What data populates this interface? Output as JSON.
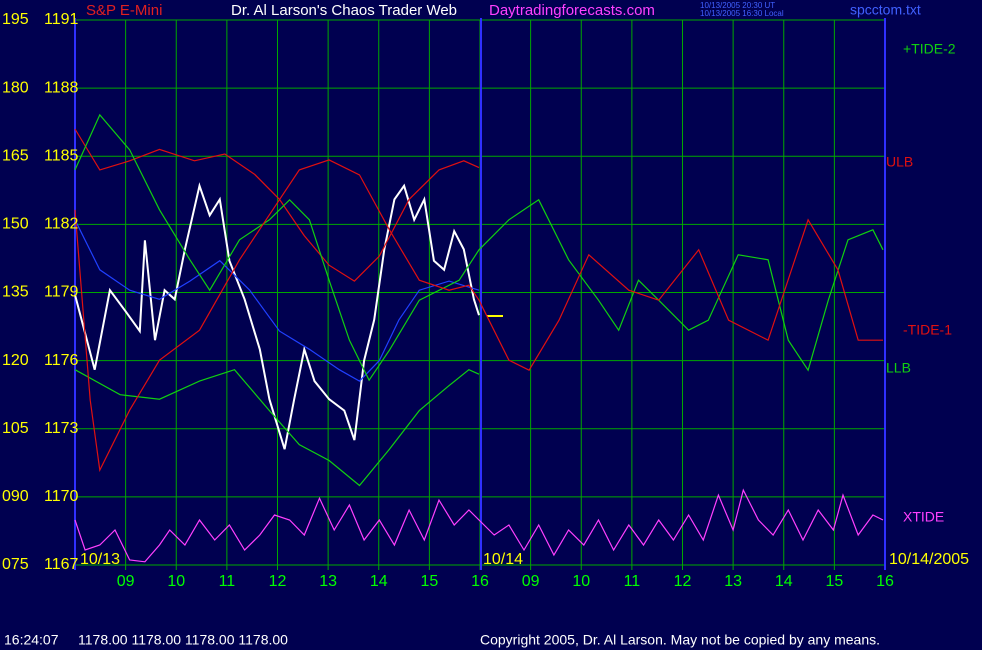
{
  "chart_data": {
    "type": "line",
    "title": "Dr. Al Larson's Chaos Trader Web",
    "subtitle": "S&P E-Mini",
    "website": "Daytradingforecasts.com",
    "timestamps": [
      "10/13/2005 20:30 UT",
      "10/13/2005 16:30 Local"
    ],
    "file": "spcctom.txt",
    "dates": [
      "10/13",
      "10/14",
      "10/14/2005"
    ],
    "status_time": "16:24:07",
    "status_prices": "1178.00 1178.00 1178.00 1178.00",
    "copyright": "Copyright 2005, Dr. Al Larson. May not be copied by any means.",
    "grid": true,
    "grid_color": "#00a800",
    "background": "#000050",
    "xlim": [
      0,
      16
    ],
    "xticks": [
      {
        "value": 1,
        "label": "09"
      },
      {
        "value": 2,
        "label": "10"
      },
      {
        "value": 3,
        "label": "11"
      },
      {
        "value": 4,
        "label": "12"
      },
      {
        "value": 5,
        "label": "13"
      },
      {
        "value": 6,
        "label": "14"
      },
      {
        "value": 7,
        "label": "15"
      },
      {
        "value": 8,
        "label": "16"
      },
      {
        "value": 9,
        "label": "09"
      },
      {
        "value": 10,
        "label": "10"
      },
      {
        "value": 11,
        "label": "11"
      },
      {
        "value": 12,
        "label": "12"
      },
      {
        "value": 13,
        "label": "13"
      },
      {
        "value": 14,
        "label": "14"
      },
      {
        "value": 15,
        "label": "15"
      },
      {
        "value": 16,
        "label": "16"
      }
    ],
    "ylim": [
      1167,
      1191
    ],
    "yticks": [
      1167,
      1170,
      1173,
      1176,
      1179,
      1182,
      1185,
      1188,
      1191
    ],
    "y2lim": [
      75,
      195
    ],
    "y2ticks": [
      {
        "value": 75,
        "label": "075"
      },
      {
        "value": 90,
        "label": "090"
      },
      105,
      120,
      135,
      150,
      165,
      180,
      195
    ],
    "series": [
      {
        "color": "#ffffff",
        "x": [
          0,
          0.39,
          0.69,
          0.99,
          1.28,
          1.38,
          1.58,
          1.77,
          1.97,
          2.17,
          2.46,
          2.66,
          2.86,
          3.05,
          3.35,
          3.65,
          3.84,
          4.14,
          4.33,
          4.53,
          4.73,
          5.02,
          5.32,
          5.52,
          5.71,
          5.91,
          6.11,
          6.31,
          6.5,
          6.7,
          6.9,
          7.09,
          7.29,
          7.49,
          7.68,
          7.88,
          7.98
        ],
        "values": [
          1178.9,
          1175.6,
          1179.1,
          1178.2,
          1177.3,
          1181.3,
          1176.9,
          1179.1,
          1178.7,
          1180.9,
          1183.7,
          1182.4,
          1183.1,
          1180.4,
          1178.7,
          1176.5,
          1174.3,
          1172.1,
          1174.3,
          1176.5,
          1175.1,
          1174.3,
          1173.8,
          1172.5,
          1176.0,
          1177.8,
          1180.9,
          1183.1,
          1183.7,
          1182.2,
          1183.1,
          1180.4,
          1180.0,
          1181.7,
          1180.9,
          1178.7,
          1178.0
        ]
      },
      {
        "color": "#2040ff",
        "x": [
          0,
          0.49,
          1.08,
          1.67,
          2.27,
          2.86,
          3.45,
          4.04,
          4.63,
          5.22,
          5.62,
          6.01,
          6.4,
          6.8,
          7.39,
          7.98
        ],
        "values": [
          1182.2,
          1180.0,
          1179.1,
          1178.7,
          1179.5,
          1180.4,
          1179.1,
          1177.3,
          1176.5,
          1175.6,
          1175.1,
          1176.0,
          1177.8,
          1179.1,
          1179.5,
          1179.1
        ]
      },
      {
        "name": "ULB",
        "color": "#e01010",
        "x": [
          0,
          0.49,
          1.08,
          1.67,
          2.36,
          2.96,
          3.55,
          4.04,
          4.53,
          5.02,
          5.52,
          6.01,
          6.6,
          7.19,
          7.68,
          7.98
        ],
        "values": [
          1186.2,
          1184.4,
          1184.8,
          1185.3,
          1184.8,
          1185.1,
          1184.2,
          1183.1,
          1181.5,
          1180.2,
          1179.5,
          1180.6,
          1183.1,
          1184.4,
          1184.8,
          1184.5
        ]
      },
      {
        "name": "LLB",
        "color": "#10d010",
        "x": [
          0,
          0.89,
          1.67,
          2.46,
          3.15,
          3.84,
          4.43,
          5.02,
          5.62,
          6.21,
          6.8,
          7.39,
          7.78,
          7.98
        ],
        "values": [
          1175.6,
          1174.5,
          1174.3,
          1175.1,
          1175.6,
          1173.8,
          1172.3,
          1171.6,
          1170.5,
          1172.1,
          1173.8,
          1174.9,
          1175.6,
          1175.4
        ]
      },
      {
        "name": "+TIDE-2",
        "color": "#10d010",
        "axis": "y2",
        "x": [
          0,
          0.49,
          1.08,
          1.67,
          2.27,
          2.66,
          3.25,
          3.84,
          4.24,
          4.63,
          5.02,
          5.42,
          5.81,
          6.21,
          6.8,
          7.59,
          7.98,
          8.57,
          9.16,
          9.75,
          10.34,
          10.74,
          11.13,
          11.53,
          12.12,
          12.51,
          13.1,
          13.69,
          14.09,
          14.48,
          14.88,
          15.27,
          15.76,
          15.96
        ],
        "values": [
          162.0,
          174.1,
          166.4,
          153.2,
          142.2,
          135.5,
          146.6,
          151.0,
          155.4,
          151.0,
          137.7,
          124.5,
          115.7,
          122.3,
          133.3,
          137.7,
          144.4,
          151.0,
          155.4,
          142.2,
          133.3,
          126.7,
          137.7,
          133.3,
          126.7,
          128.9,
          143.3,
          142.2,
          124.5,
          117.9,
          133.3,
          146.6,
          148.8,
          144.4
        ]
      },
      {
        "name": "-TIDE-1",
        "color": "#e01010",
        "axis": "y2",
        "x": [
          0,
          0.3,
          0.49,
          1.08,
          1.67,
          2.46,
          3.25,
          3.84,
          4.43,
          5.02,
          5.62,
          6.21,
          6.8,
          7.39,
          7.78,
          7.98,
          8.57,
          8.97,
          9.56,
          10.15,
          10.94,
          11.53,
          12.32,
          12.91,
          13.69,
          14.48,
          15.07,
          15.47,
          15.96
        ],
        "values": [
          153.2,
          111.3,
          95.9,
          109.1,
          120.1,
          126.7,
          142.2,
          152.1,
          162.0,
          164.2,
          160.9,
          148.8,
          137.7,
          135.5,
          136.6,
          133.3,
          120.1,
          117.9,
          128.9,
          143.3,
          135.5,
          133.3,
          144.4,
          128.9,
          124.5,
          151.0,
          140.0,
          124.5,
          124.5
        ]
      },
      {
        "name": "XTIDE",
        "color": "#ff40ff",
        "axis": "y2",
        "x": [
          0,
          0.2,
          0.49,
          0.79,
          1.08,
          1.38,
          1.67,
          1.87,
          2.17,
          2.46,
          2.76,
          3.05,
          3.35,
          3.65,
          3.94,
          4.24,
          4.53,
          4.83,
          5.12,
          5.42,
          5.71,
          6.01,
          6.31,
          6.6,
          6.9,
          7.19,
          7.49,
          7.78,
          7.98,
          8.28,
          8.57,
          8.87,
          9.16,
          9.46,
          9.75,
          10.05,
          10.34,
          10.64,
          10.94,
          11.23,
          11.53,
          11.82,
          12.12,
          12.41,
          12.71,
          13.0,
          13.2,
          13.5,
          13.79,
          14.09,
          14.38,
          14.68,
          14.98,
          15.17,
          15.47,
          15.76,
          15.96
        ],
        "values": [
          84.9,
          78.3,
          79.4,
          82.7,
          76.1,
          75.7,
          79.4,
          82.7,
          79.4,
          84.9,
          80.5,
          83.8,
          78.3,
          81.6,
          86.0,
          84.9,
          81.6,
          89.7,
          82.7,
          88.2,
          80.5,
          84.9,
          79.4,
          87.1,
          80.5,
          89.3,
          83.8,
          87.1,
          84.9,
          81.6,
          83.8,
          78.3,
          83.8,
          77.2,
          82.7,
          79.4,
          84.9,
          78.3,
          83.8,
          79.4,
          84.9,
          80.5,
          86.0,
          80.5,
          90.4,
          82.7,
          91.5,
          84.9,
          81.6,
          87.1,
          80.5,
          87.1,
          82.7,
          90.4,
          81.6,
          86.0,
          84.9
        ]
      }
    ]
  }
}
